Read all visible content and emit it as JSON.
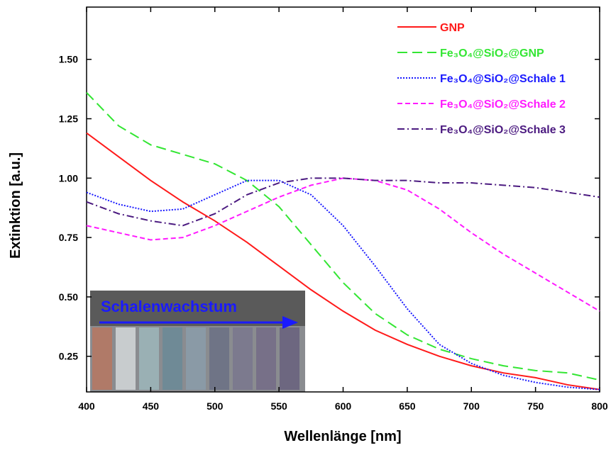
{
  "chart_data": {
    "type": "line",
    "x_label": "Wellenlänge [nm]",
    "y_label": "Extinktion [a.u.]",
    "x": [
      400,
      425,
      450,
      475,
      500,
      525,
      550,
      575,
      600,
      625,
      650,
      675,
      700,
      725,
      750,
      775,
      800
    ],
    "series": [
      {
        "name": "GNP",
        "color": "#ff1a1a",
        "dash": "solid",
        "values": [
          1.19,
          1.09,
          0.99,
          0.9,
          0.82,
          0.73,
          0.63,
          0.53,
          0.44,
          0.36,
          0.3,
          0.25,
          0.21,
          0.18,
          0.16,
          0.13,
          0.11
        ]
      },
      {
        "name": "Fe₃O₄@SiO₂@GNP",
        "color": "#33e633",
        "dash": "dashed",
        "values": [
          1.36,
          1.22,
          1.14,
          1.1,
          1.06,
          0.99,
          0.88,
          0.72,
          0.56,
          0.43,
          0.34,
          0.28,
          0.24,
          0.21,
          0.19,
          0.18,
          0.15
        ]
      },
      {
        "name": "Fe₃O₄@SiO₂@Schale 1",
        "color": "#1a1aff",
        "dash": "dotted",
        "values": [
          0.94,
          0.89,
          0.86,
          0.87,
          0.93,
          0.99,
          0.99,
          0.93,
          0.8,
          0.63,
          0.45,
          0.3,
          0.22,
          0.17,
          0.14,
          0.12,
          0.11
        ]
      },
      {
        "name": "Fe₃O₄@SiO₂@Schale 2",
        "color": "#ff1aff",
        "dash": "short-dashed",
        "values": [
          0.8,
          0.77,
          0.74,
          0.75,
          0.8,
          0.86,
          0.92,
          0.97,
          1.0,
          0.99,
          0.95,
          0.87,
          0.77,
          0.68,
          0.6,
          0.52,
          0.44
        ]
      },
      {
        "name": "Fe₃O₄@SiO₂@Schale 3",
        "color": "#4b1a80",
        "dash": "dash-dot",
        "values": [
          0.9,
          0.85,
          0.82,
          0.8,
          0.85,
          0.93,
          0.98,
          1.0,
          1.0,
          0.99,
          0.99,
          0.98,
          0.98,
          0.97,
          0.96,
          0.94,
          0.92
        ]
      }
    ],
    "xlim": [
      400,
      800
    ],
    "xticks": [
      400,
      450,
      500,
      550,
      600,
      650,
      700,
      750,
      800
    ],
    "ylim": [
      0.1,
      1.72
    ],
    "yticks": [
      {
        "value": 0.25,
        "label": "0.25"
      },
      {
        "value": 0.5,
        "label": "0.50"
      },
      {
        "value": 0.75,
        "label": "0.75"
      },
      {
        "value": 1,
        "label": "1.00"
      },
      {
        "value": 1.25,
        "label": "1.25"
      },
      {
        "value": 1.5,
        "label": "1.50"
      }
    ],
    "legend": "upper right",
    "inset_label": "Schalenwachstum"
  }
}
